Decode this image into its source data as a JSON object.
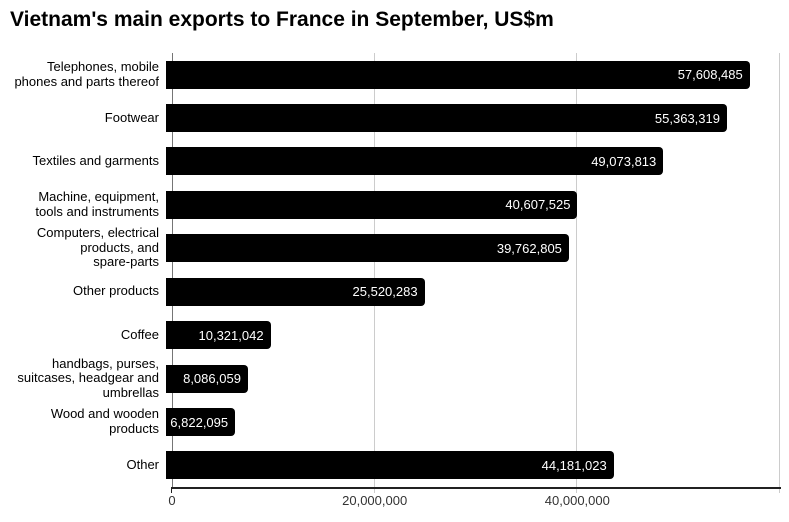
{
  "title": "Vietnam's main exports to France in September, US$m",
  "colors": {
    "bar": "#000000",
    "value_text": "#ffffff",
    "gridline": "#cccccc",
    "baseline": "#757575",
    "axis_line": "#212121",
    "category_label": "#000000",
    "tick_label": "#333333",
    "title": "#000000",
    "background": "#ffffff"
  },
  "chart_data": {
    "type": "bar",
    "orientation": "horizontal",
    "title": "Vietnam's main exports to France in September, US$m",
    "categories": [
      "Telephones, mobile\nphones and parts thereof",
      "Footwear",
      "Textiles and garments",
      "Machine, equipment,\ntools and instruments",
      "Computers, electrical\nproducts, and\nspare-parts",
      "Other products",
      "Coffee",
      "handbags, purses,\nsuitcases, headgear and\numbrellas",
      "Wood and wooden\nproducts",
      "Other"
    ],
    "values": [
      57608485,
      55363319,
      49073813,
      40607525,
      39762805,
      25520283,
      10321042,
      8086059,
      6822095,
      44181023
    ],
    "value_labels": [
      "57,608,485",
      "55,363,319",
      "49,073,813",
      "40,607,525",
      "39,762,805",
      "25,520,283",
      "10,321,042",
      "8,086,059",
      "6,822,095",
      "44,181,023"
    ],
    "xlabel": "",
    "ylabel": "",
    "xlim": [
      0,
      60000000
    ],
    "x_ticks": [
      "0",
      "20,000,000",
      "40,000,000"
    ],
    "x_tick_values": [
      0,
      20000000,
      40000000
    ],
    "gridline_values": [
      20000000,
      40000000,
      60000000
    ],
    "grid": true,
    "legend": false
  }
}
